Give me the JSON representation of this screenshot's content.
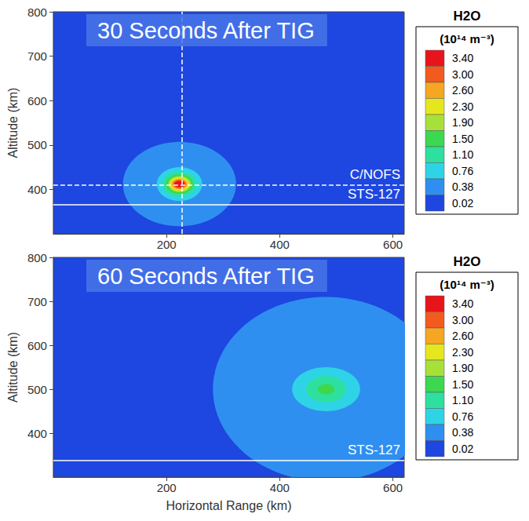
{
  "chart_data": [
    {
      "type": "contour",
      "title": "30 Seconds After TIG",
      "y_label": "Altitude (km)",
      "xlim": [
        0,
        620
      ],
      "xticks": [
        200,
        400,
        600
      ],
      "ylim": [
        300,
        800
      ],
      "yticks": [
        400,
        500,
        600,
        700,
        800
      ],
      "grid": false,
      "colorbar": {
        "title": "H2O",
        "unit": "(10¹⁴ m⁻³)",
        "ticks": [
          {
            "value": 3.4,
            "label": "3.40"
          },
          {
            "value": 3.0,
            "label": "3.00"
          },
          {
            "value": 2.6,
            "label": "2.60"
          },
          {
            "value": 2.3,
            "label": "2.30"
          },
          {
            "value": 1.9,
            "label": "1.90"
          },
          {
            "value": 1.5,
            "label": "1.50"
          },
          {
            "value": 1.1,
            "label": "1.10"
          },
          0.76,
          0.38,
          0.02
        ],
        "colors": [
          "#e8141c",
          "#f25a1e",
          "#f5a623",
          "#e6e61e",
          "#a8e03a",
          "#3cd850",
          "#2ee0a0",
          "#2ed4e6",
          "#2f8ff0",
          "#1e46e0"
        ]
      },
      "plume": {
        "x": 223,
        "y": 412,
        "contours": [
          {
            "level": 0.38,
            "rx": 100,
            "ry": 95
          },
          {
            "level": 0.76,
            "rx": 40,
            "ry": 38
          },
          {
            "level": 1.1,
            "rx": 30,
            "ry": 28
          },
          {
            "level": 1.5,
            "rx": 24,
            "ry": 22
          },
          {
            "level": 1.9,
            "rx": 20,
            "ry": 18
          },
          {
            "level": 2.3,
            "rx": 17,
            "ry": 15
          },
          {
            "level": 2.6,
            "rx": 14,
            "ry": 12
          },
          {
            "level": 3.0,
            "rx": 11,
            "ry": 10
          },
          {
            "level": 3.4,
            "rx": 9,
            "ry": 7
          }
        ]
      },
      "satellites": [
        {
          "name": "C/NOFS",
          "altitude": 410,
          "range": 227,
          "line_style": "dashed"
        },
        {
          "name": "STS-127",
          "altitude": 365,
          "line_style": "solid"
        }
      ]
    },
    {
      "type": "contour",
      "title": "60 Seconds After TIG",
      "x_label": "Horizontal Range (km)",
      "y_label": "Altitude (km)",
      "xlim": [
        0,
        620
      ],
      "xticks": [
        200,
        400,
        600
      ],
      "ylim": [
        300,
        800
      ],
      "yticks": [
        400,
        500,
        600,
        700,
        800
      ],
      "grid": false,
      "colorbar": {
        "title": "H2O",
        "unit": "(10¹⁴ m⁻³)",
        "ticks": [
          {
            "value": 3.4,
            "label": "3.40"
          },
          {
            "value": 3.0,
            "label": "3.00"
          },
          {
            "value": 2.6,
            "label": "2.60"
          },
          {
            "value": 2.3,
            "label": "2.30"
          },
          {
            "value": 1.9,
            "label": "1.90"
          },
          {
            "value": 1.5,
            "label": "1.50"
          },
          {
            "value": 1.1,
            "label": "1.10"
          },
          0.76,
          0.38,
          0.02
        ],
        "colors": [
          "#e8141c",
          "#f25a1e",
          "#f5a623",
          "#e6e61e",
          "#a8e03a",
          "#3cd850",
          "#2ee0a0",
          "#2ed4e6",
          "#2f8ff0",
          "#1e46e0"
        ]
      },
      "plume": {
        "x": 482,
        "y": 500,
        "contours": [
          {
            "level": 0.38,
            "rx": 200,
            "ry": 210
          },
          {
            "level": 0.76,
            "rx": 60,
            "ry": 50
          },
          {
            "level": 1.1,
            "rx": 35,
            "ry": 30
          },
          {
            "level": 1.5,
            "rx": 15,
            "ry": 12
          }
        ]
      },
      "satellites": [
        {
          "name": "STS-127",
          "altitude": 338,
          "line_style": "solid"
        }
      ]
    }
  ]
}
